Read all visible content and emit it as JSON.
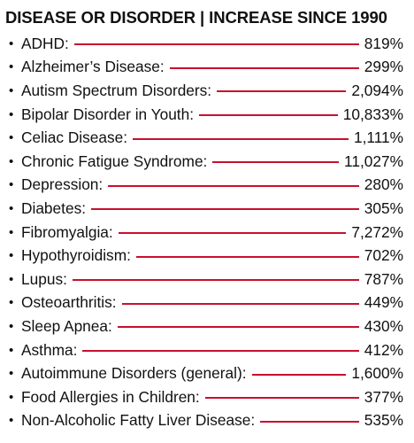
{
  "header": {
    "title": "DISEASE OR DISORDER | INCREASE SINCE 1990"
  },
  "colors": {
    "line": "#c8102e",
    "text": "#111111"
  },
  "bullet_glyph": "•",
  "rows": [
    {
      "name": "ADHD:",
      "value": "819%"
    },
    {
      "name": "Alzheimer’s Disease:",
      "value": "299%"
    },
    {
      "name": "Autism Spectrum Disorders:",
      "value": "2,094%"
    },
    {
      "name": "Bipolar Disorder in Youth:",
      "value": "10,833%"
    },
    {
      "name": "Celiac Disease:",
      "value": "1,111%"
    },
    {
      "name": "Chronic Fatigue Syndrome:",
      "value": "11,027%"
    },
    {
      "name": "Depression:",
      "value": "280%"
    },
    {
      "name": "Diabetes:",
      "value": "305%"
    },
    {
      "name": "Fibromyalgia:",
      "value": "7,272%"
    },
    {
      "name": "Hypothyroidism:",
      "value": "702%"
    },
    {
      "name": "Lupus:",
      "value": "787%"
    },
    {
      "name": "Osteoarthritis:",
      "value": "449%"
    },
    {
      "name": "Sleep Apnea:",
      "value": "430%"
    },
    {
      "name": "Asthma:",
      "value": "412%"
    },
    {
      "name": "Autoimmune Disorders (general):",
      "value": "1,600%"
    },
    {
      "name": "Food Allergies in Children:",
      "value": "377%"
    },
    {
      "name": "Non-Alcoholic Fatty Liver Disease:",
      "value": "535%"
    }
  ]
}
